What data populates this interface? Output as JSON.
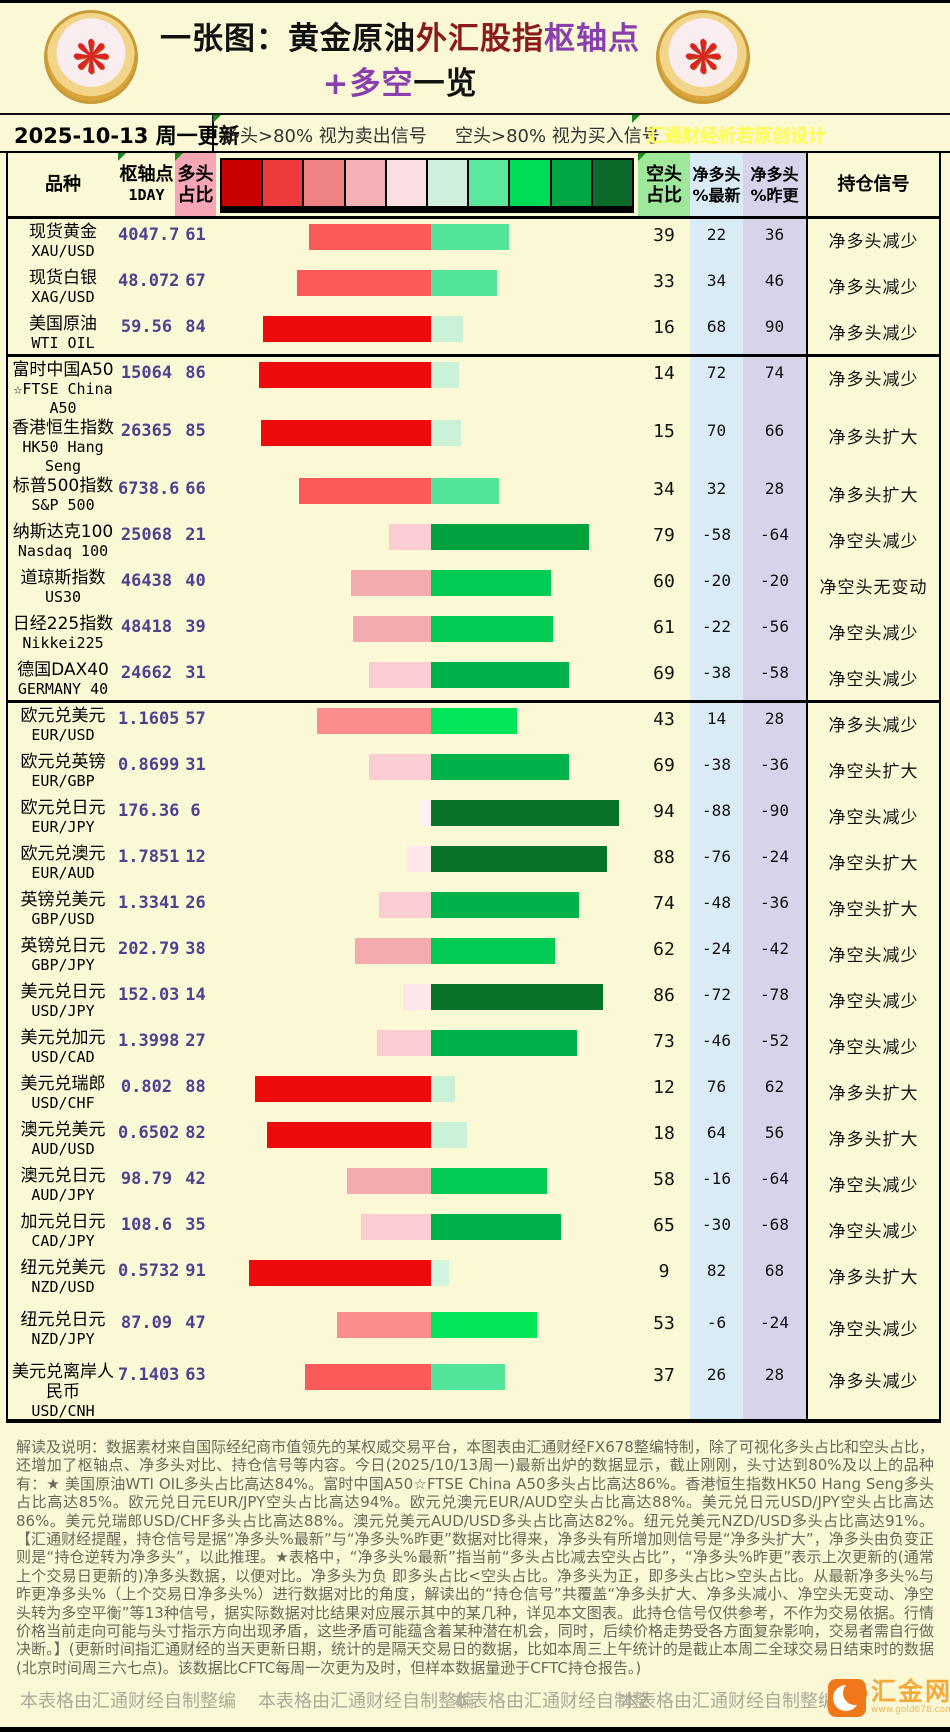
{
  "title": {
    "part1": "一张图：黄金原油",
    "part2": "外汇股指",
    "part3": "枢轴点+多空",
    "part4": "一览"
  },
  "subheader": {
    "date": "2025-10-13 周一更新",
    "long_note": "多头>80% 视为卖出信号",
    "short_note": "空头>80% 视为买入信号",
    "credit": "汇通财经析若原创设计"
  },
  "columns": {
    "product": "品种",
    "pivot_line1": "枢轴点",
    "pivot_line2": "1DAY",
    "long_line1": "多头",
    "long_line2": "占比",
    "short_line1": "空头",
    "short_line2": "占比",
    "net_latest_line1": "净多头",
    "net_latest_line2": "%最新",
    "net_prev_line1": "净多头",
    "net_prev_line2": "%昨更",
    "signal": "持仓信号"
  },
  "legend_colors": [
    "#c90000",
    "#ee3b3b",
    "#ef8282",
    "#f5b1b5",
    "#fbdee2",
    "#cff0da",
    "#5ae89c",
    "#00dc55",
    "#00a843",
    "#0c6b2b"
  ],
  "rows": [
    {
      "name_lines": [
        "现货黄金",
        "XAU/USD"
      ],
      "pivot": "4047.7",
      "long": 61,
      "short": 39,
      "net_latest": 22,
      "net_prev": 36,
      "signal": "净多头减少",
      "group_end": false
    },
    {
      "name_lines": [
        "现货白银",
        "XAG/USD"
      ],
      "pivot": "48.072",
      "long": 67,
      "short": 33,
      "net_latest": 34,
      "net_prev": 46,
      "signal": "净多头减少",
      "group_end": false
    },
    {
      "name_lines": [
        "美国原油",
        "WTI OIL"
      ],
      "pivot": "59.56",
      "long": 84,
      "short": 16,
      "net_latest": 68,
      "net_prev": 90,
      "signal": "净多头减少",
      "group_end": true
    },
    {
      "name_lines": [
        "富时中国A50",
        "☆FTSE China",
        "A50"
      ],
      "pivot": "15064",
      "long": 86,
      "short": 14,
      "net_latest": 72,
      "net_prev": 74,
      "signal": "净多头减少",
      "group_end": false
    },
    {
      "name_lines": [
        "香港恒生指数",
        "HK50 Hang",
        "Seng"
      ],
      "pivot": "26365",
      "long": 85,
      "short": 15,
      "net_latest": 70,
      "net_prev": 66,
      "signal": "净多头扩大",
      "group_end": false
    },
    {
      "name_lines": [
        "标普500指数",
        "S&P 500"
      ],
      "pivot": "6738.6",
      "long": 66,
      "short": 34,
      "net_latest": 32,
      "net_prev": 28,
      "signal": "净多头扩大",
      "group_end": false
    },
    {
      "name_lines": [
        "纳斯达克100",
        "Nasdaq 100"
      ],
      "pivot": "25068",
      "long": 21,
      "short": 79,
      "net_latest": -58,
      "net_prev": -64,
      "signal": "净空头减少",
      "group_end": false
    },
    {
      "name_lines": [
        "道琼斯指数",
        "US30"
      ],
      "pivot": "46438",
      "long": 40,
      "short": 60,
      "net_latest": -20,
      "net_prev": -20,
      "signal": "净空头无变动",
      "group_end": false
    },
    {
      "name_lines": [
        "日经225指数",
        "Nikkei225"
      ],
      "pivot": "48418",
      "long": 39,
      "short": 61,
      "net_latest": -22,
      "net_prev": -56,
      "signal": "净空头减少",
      "group_end": false
    },
    {
      "name_lines": [
        "德国DAX40",
        "GERMANY 40"
      ],
      "pivot": "24662",
      "long": 31,
      "short": 69,
      "net_latest": -38,
      "net_prev": -58,
      "signal": "净空头减少",
      "group_end": true
    },
    {
      "name_lines": [
        "欧元兑美元",
        "EUR/USD"
      ],
      "pivot": "1.1605",
      "long": 57,
      "short": 43,
      "net_latest": 14,
      "net_prev": 28,
      "signal": "净多头减少",
      "group_end": false
    },
    {
      "name_lines": [
        "欧元兑英镑",
        "EUR/GBP"
      ],
      "pivot": "0.8699",
      "long": 31,
      "short": 69,
      "net_latest": -38,
      "net_prev": -36,
      "signal": "净空头扩大",
      "group_end": false
    },
    {
      "name_lines": [
        "欧元兑日元",
        "EUR/JPY"
      ],
      "pivot": "176.36",
      "long": 6,
      "short": 94,
      "net_latest": -88,
      "net_prev": -90,
      "signal": "净空头减少",
      "group_end": false
    },
    {
      "name_lines": [
        "欧元兑澳元",
        "EUR/AUD"
      ],
      "pivot": "1.7851",
      "long": 12,
      "short": 88,
      "net_latest": -76,
      "net_prev": -24,
      "signal": "净空头扩大",
      "group_end": false
    },
    {
      "name_lines": [
        "英镑兑美元",
        "GBP/USD"
      ],
      "pivot": "1.3341",
      "long": 26,
      "short": 74,
      "net_latest": -48,
      "net_prev": -36,
      "signal": "净空头扩大",
      "group_end": false
    },
    {
      "name_lines": [
        "英镑兑日元",
        "GBP/JPY"
      ],
      "pivot": "202.79",
      "long": 38,
      "short": 62,
      "net_latest": -24,
      "net_prev": -42,
      "signal": "净空头减少",
      "group_end": false
    },
    {
      "name_lines": [
        "美元兑日元",
        "USD/JPY"
      ],
      "pivot": "152.03",
      "long": 14,
      "short": 86,
      "net_latest": -72,
      "net_prev": -78,
      "signal": "净空头减少",
      "group_end": false
    },
    {
      "name_lines": [
        "美元兑加元",
        "USD/CAD"
      ],
      "pivot": "1.3998",
      "long": 27,
      "short": 73,
      "net_latest": -46,
      "net_prev": -52,
      "signal": "净空头减少",
      "group_end": false
    },
    {
      "name_lines": [
        "美元兑瑞郎",
        "USD/CHF"
      ],
      "pivot": "0.802",
      "long": 88,
      "short": 12,
      "net_latest": 76,
      "net_prev": 62,
      "signal": "净多头扩大",
      "group_end": false
    },
    {
      "name_lines": [
        "澳元兑美元",
        "AUD/USD"
      ],
      "pivot": "0.6502",
      "long": 82,
      "short": 18,
      "net_latest": 64,
      "net_prev": 56,
      "signal": "净多头扩大",
      "group_end": false
    },
    {
      "name_lines": [
        "澳元兑日元",
        "AUD/JPY"
      ],
      "pivot": "98.79",
      "long": 42,
      "short": 58,
      "net_latest": -16,
      "net_prev": -64,
      "signal": "净空头减少",
      "group_end": false
    },
    {
      "name_lines": [
        "加元兑日元",
        "CAD/JPY"
      ],
      "pivot": "108.6",
      "long": 35,
      "short": 65,
      "net_latest": -30,
      "net_prev": -68,
      "signal": "净空头减少",
      "group_end": false
    },
    {
      "name_lines": [
        "纽元兑美元",
        "NZD/USD"
      ],
      "pivot": "0.5732",
      "long": 91,
      "short": 9,
      "net_latest": 82,
      "net_prev": 68,
      "signal": "净多头扩大",
      "group_end": false
    },
    {
      "name_lines": [
        "纽元兑日元",
        "NZD/JPY"
      ],
      "pivot": "87.09",
      "long": 47,
      "short": 53,
      "net_latest": -6,
      "net_prev": -24,
      "signal": "净空头减少",
      "group_end": false
    },
    {
      "name_lines": [
        "美元兑离岸人",
        "民币",
        "USD/CNH"
      ],
      "pivot": "7.1403",
      "long": 63,
      "short": 37,
      "net_latest": 26,
      "net_prev": 28,
      "signal": "净多头减少",
      "group_end": false
    }
  ],
  "footer": {
    "explanation": "解读及说明：数据素材来自国际经纪商市值领先的某权威交易平台，本图表由汇通财经FX678整编特制，除了可视化多头占比和空头占比，还增加了枢轴点、净多头对比、持仓信号等内容。今日(2025/10/13周一)最新出炉的数据显示，截止刚刚，头寸达到80%及以上的品种有：★ 美国原油WTI OIL多头占比高达84%。富时中国A50☆FTSE China A50多头占比高达86%。香港恒生指数HK50 Hang Seng多头占比高达85%。欧元兑日元EUR/JPY空头占比高达94%。欧元兑澳元EUR/AUD空头占比高达88%。美元兑日元USD/JPY空头占比高达86%。美元兑瑞郎USD/CHF多头占比高达88%。澳元兑美元AUD/USD多头占比高达82%。纽元兑美元NZD/USD多头占比高达91%。【汇通财经提醒，持仓信号是据“净多头%最新”与“净多头%昨更”数据对比得来，净多头有所增加则信号是“净多头扩大”，净多头由负变正则是“持仓逆转为净多头”，以此推理。★表格中，“净多头%最新”指当前“多头占比减去空头占比”，“净多头%昨更”表示上次更新的(通常上个交易日更新的)净多头数据，以便对比。净多头为负 即多头占比<空头占比。净多头为正，即多头占比>空头占比。从最新净多头%与昨更净多头%（上个交易日净多头%）进行数据对比的角度，解读出的“持仓信号”共覆盖“净多头扩大、净多头减小、净空头无变动、净空头转为多空平衡”等13种信号，据实际数据对比结果对应展示其中的某几种，详见本文图表。此持仓信号仅供参考，不作为交易依据。行情价格当前走向可能与头寸指示方向出现矛盾，这些矛盾可能蕴含着某种潜在机会，同时，后续价格走势受各方面复杂影响，交易者需自行做决断。】(更新时间指汇通财经的当天更新日期，统计的是隔天交易日的数据，比如本周三上午统计的是截止本周二全球交易日结束时的数据(北京时间周三六七点)。该数据比CFTC每周一次更为及时，但样本数据量逊于CFTC持仓报告。)",
    "credits": [
      "本表格由汇通财经自制整编",
      "本表格由汇通财经自制整编",
      "本表格由汇通财经自制整",
      "本表格由汇通财经自制整编"
    ],
    "site": {
      "name": "汇金网",
      "url": "www.gold678.com"
    }
  },
  "chart_data": {
    "type": "bar",
    "subtype": "diverging-horizontal-paired",
    "title": "一张图：黄金原油外汇股指枢轴点+多空一览",
    "categories": [
      "XAU/USD",
      "XAG/USD",
      "WTI OIL",
      "FTSE China A50",
      "HK50 Hang Seng",
      "S&P 500",
      "Nasdaq 100",
      "US30",
      "Nikkei225",
      "GERMANY 40",
      "EUR/USD",
      "EUR/GBP",
      "EUR/JPY",
      "EUR/AUD",
      "GBP/USD",
      "GBP/JPY",
      "USD/JPY",
      "USD/CAD",
      "USD/CHF",
      "AUD/USD",
      "AUD/JPY",
      "CAD/JPY",
      "NZD/USD",
      "NZD/JPY",
      "USD/CNH"
    ],
    "series": [
      {
        "name": "枢轴点1DAY",
        "values": [
          4047.7,
          48.072,
          59.56,
          15064,
          26365,
          6738.6,
          25068,
          46438,
          48418,
          24662,
          1.1605,
          0.8699,
          176.36,
          1.7851,
          1.3341,
          202.79,
          152.03,
          1.3998,
          0.802,
          0.6502,
          98.79,
          108.6,
          0.5732,
          87.09,
          7.1403
        ]
      },
      {
        "name": "多头占比",
        "values": [
          61,
          67,
          84,
          86,
          85,
          66,
          21,
          40,
          39,
          31,
          57,
          31,
          6,
          12,
          26,
          38,
          14,
          27,
          88,
          82,
          42,
          35,
          91,
          47,
          63
        ]
      },
      {
        "name": "空头占比",
        "values": [
          39,
          33,
          16,
          14,
          15,
          34,
          79,
          60,
          61,
          69,
          43,
          69,
          94,
          88,
          74,
          62,
          86,
          73,
          12,
          18,
          58,
          65,
          9,
          53,
          37
        ]
      },
      {
        "name": "净多头%最新",
        "values": [
          22,
          34,
          68,
          72,
          70,
          32,
          -58,
          -20,
          -22,
          -38,
          14,
          -38,
          -88,
          -76,
          -48,
          -24,
          -72,
          -46,
          76,
          64,
          -16,
          -30,
          82,
          -6,
          26
        ]
      },
      {
        "name": "净多头%昨更",
        "values": [
          36,
          46,
          90,
          74,
          66,
          28,
          -64,
          -20,
          -56,
          -58,
          28,
          -36,
          -90,
          -24,
          -36,
          -42,
          -78,
          -52,
          62,
          56,
          -64,
          -68,
          68,
          -24,
          28
        ]
      }
    ],
    "xlim": [
      -100,
      100
    ],
    "legend_position": "top",
    "grid": false
  }
}
